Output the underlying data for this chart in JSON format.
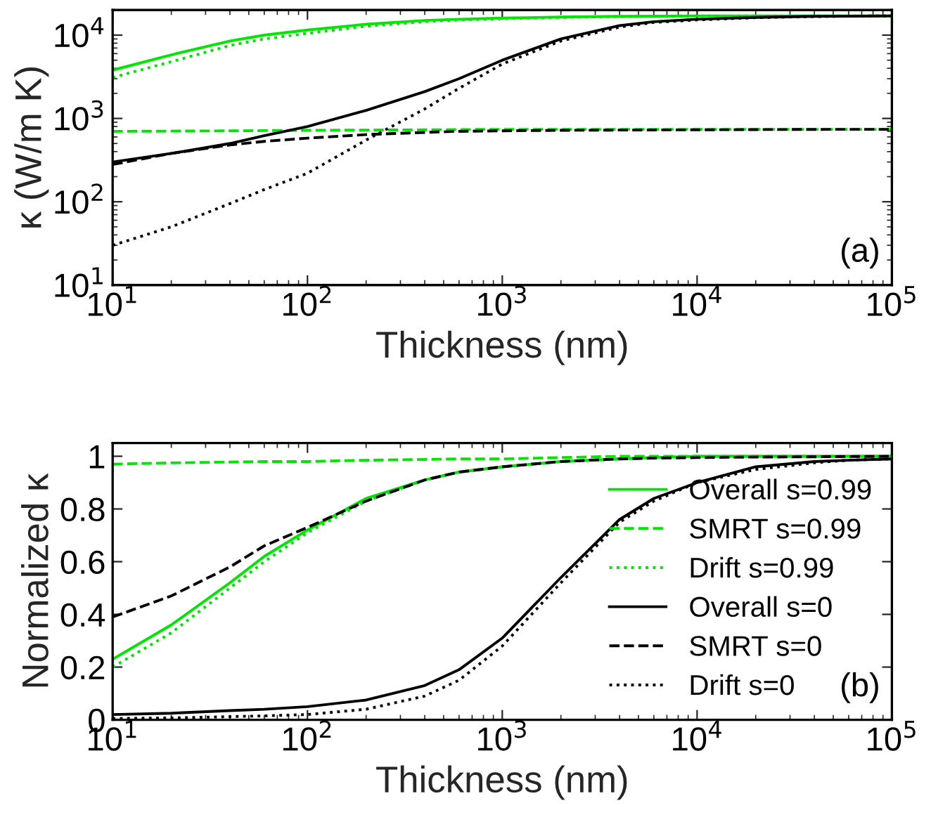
{
  "chart_data": [
    {
      "type": "line",
      "log": "xy",
      "xlabel": "Thickness (nm)",
      "ylabel": "κ (W/m K)",
      "annotations": [
        "(a)"
      ],
      "x": [
        10,
        20,
        40,
        60,
        100,
        200,
        400,
        600,
        1000,
        2000,
        4000,
        6000,
        10000,
        20000,
        40000,
        60000,
        100000
      ],
      "xlim": [
        10,
        100000
      ],
      "ylim": [
        10,
        20000
      ],
      "xticks": [
        {
          "value": 10,
          "label": "10$^{1}$"
        },
        {
          "value": 100,
          "label": "10$^{2}$"
        },
        {
          "value": 1000,
          "label": "10$^{3}$"
        },
        {
          "value": 10000,
          "label": "10$^{4}$"
        },
        {
          "value": 100000,
          "label": "10$^{5}$"
        }
      ],
      "yticks": [
        {
          "value": 10,
          "label": "10$^{1}$"
        },
        {
          "value": 100,
          "label": "10$^{2}$"
        },
        {
          "value": 1000,
          "label": "10$^{3}$"
        },
        {
          "value": 10000,
          "label": "10$^{4}$"
        }
      ],
      "series": [
        {
          "color": "#00e600",
          "line_style": "solid",
          "values": [
            3800,
            5800,
            8500,
            10000,
            11500,
            13500,
            15000,
            15500,
            16000,
            16500,
            16800,
            16900,
            17000,
            17000,
            17000,
            17000,
            17000
          ]
        },
        {
          "color": "#00e600",
          "line_style": "dashed",
          "values": [
            700,
            705,
            710,
            715,
            720,
            725,
            730,
            735,
            740,
            740,
            740,
            740,
            740,
            740,
            740,
            740,
            740
          ]
        },
        {
          "color": "#00e600",
          "line_style": "dotted",
          "values": [
            3100,
            4800,
            7500,
            9000,
            10500,
            12800,
            14500,
            15200,
            15700,
            16300,
            16700,
            16900,
            17000,
            17000,
            17000,
            17000,
            17000
          ]
        },
        {
          "color": "#000000",
          "line_style": "solid",
          "values": [
            300,
            380,
            500,
            620,
            800,
            1250,
            2100,
            3000,
            5000,
            9000,
            13000,
            14500,
            15500,
            16300,
            16800,
            16900,
            17000
          ]
        },
        {
          "color": "#000000",
          "line_style": "dashed",
          "values": [
            280,
            380,
            480,
            530,
            580,
            640,
            680,
            700,
            710,
            720,
            725,
            728,
            730,
            735,
            738,
            740,
            740
          ]
        },
        {
          "color": "#000000",
          "line_style": "dotted",
          "values": [
            30,
            50,
            95,
            140,
            220,
            550,
            1300,
            2300,
            4500,
            8500,
            12500,
            14200,
            15200,
            16200,
            16700,
            16900,
            17000
          ]
        }
      ]
    },
    {
      "type": "line",
      "log": "x",
      "xlabel": "Thickness (nm)",
      "ylabel": "Normalized κ",
      "annotations": [
        "(b)"
      ],
      "legend": "right",
      "x": [
        10,
        20,
        40,
        60,
        100,
        200,
        400,
        600,
        1000,
        2000,
        4000,
        6000,
        10000,
        20000,
        40000,
        60000,
        100000
      ],
      "xlim": [
        10,
        100000
      ],
      "ylim": [
        0,
        1.05
      ],
      "xticks": [
        {
          "value": 10,
          "label": "10$^{1}$"
        },
        {
          "value": 100,
          "label": "10$^{2}$"
        },
        {
          "value": 1000,
          "label": "10$^{3}$"
        },
        {
          "value": 10000,
          "label": "10$^{4}$"
        },
        {
          "value": 100000,
          "label": "10$^{5}$"
        }
      ],
      "yticks": [
        0,
        0.2,
        0.4,
        0.6,
        0.8,
        1
      ],
      "series": [
        {
          "name": "Overall s=0.99",
          "color": "#00e600",
          "line_style": "solid",
          "values": [
            0.23,
            0.36,
            0.52,
            0.62,
            0.72,
            0.84,
            0.91,
            0.94,
            0.96,
            0.98,
            0.99,
            0.995,
            1.0,
            1.0,
            1.0,
            1.0,
            1.0
          ]
        },
        {
          "name": "SMRT s=0.99",
          "color": "#00e600",
          "line_style": "dashed",
          "values": [
            0.97,
            0.975,
            0.978,
            0.98,
            0.98,
            0.985,
            0.988,
            0.99,
            0.99,
            0.995,
            1.0,
            1.0,
            1.0,
            1.0,
            1.0,
            1.0,
            1.0
          ]
        },
        {
          "name": "Drift s=0.99",
          "color": "#00e600",
          "line_style": "dotted",
          "values": [
            0.2,
            0.33,
            0.5,
            0.6,
            0.71,
            0.83,
            0.91,
            0.94,
            0.96,
            0.98,
            0.99,
            0.995,
            1.0,
            1.0,
            1.0,
            1.0,
            1.0
          ]
        },
        {
          "name": "Overall s=0",
          "color": "#000000",
          "line_style": "solid",
          "values": [
            0.02,
            0.025,
            0.035,
            0.04,
            0.05,
            0.075,
            0.13,
            0.19,
            0.31,
            0.54,
            0.76,
            0.84,
            0.9,
            0.96,
            0.98,
            0.985,
            0.99
          ]
        },
        {
          "name": "SMRT s=0",
          "color": "#000000",
          "line_style": "dashed",
          "values": [
            0.39,
            0.47,
            0.58,
            0.66,
            0.73,
            0.83,
            0.91,
            0.94,
            0.96,
            0.98,
            0.99,
            0.993,
            0.995,
            0.997,
            0.998,
            0.999,
            1.0
          ]
        },
        {
          "name": "Drift s=0",
          "color": "#000000",
          "line_style": "dotted",
          "values": [
            0.005,
            0.007,
            0.012,
            0.015,
            0.02,
            0.04,
            0.09,
            0.15,
            0.28,
            0.52,
            0.75,
            0.83,
            0.9,
            0.95,
            0.975,
            0.985,
            0.99
          ]
        }
      ]
    }
  ]
}
